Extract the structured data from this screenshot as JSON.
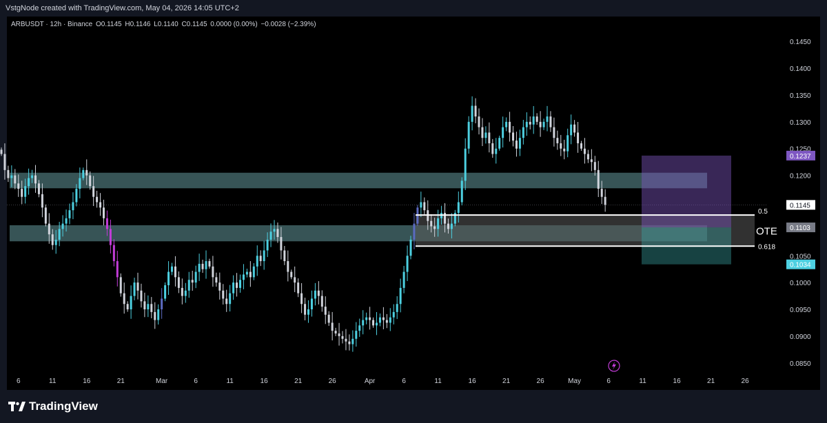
{
  "header": {
    "credit": "VstgNode created with TradingView.com, May 04, 2026 14:05 UTC+2"
  },
  "legend": {
    "symbol": "ARBUSDT · 12h · Binance",
    "open": "O0.1145",
    "high": "H0.1146",
    "low": "L0.1140",
    "close": "C0.1145",
    "change": "0.0000 (0.00%)",
    "change2": "−0.0028 (−2.39%)"
  },
  "brand": {
    "name": "TradingView"
  },
  "colors": {
    "bull": "#4dd0e1",
    "bear": "#d1d4dc",
    "zone": "#5b8c8f",
    "purple": "#7e57c2",
    "purple_candle": "#c23cd8",
    "blue_candle": "#5c6bc0"
  },
  "chart_data": {
    "type": "candlestick",
    "symbol": "ARBUSDT",
    "interval": "12h",
    "exchange": "Binance",
    "ylim": [
      0.0833,
      0.1476
    ],
    "y_ticks": [
      "0.0850",
      "0.0900",
      "0.0950",
      "0.1000",
      "0.1050",
      "0.1100",
      "0.1150",
      "0.1200",
      "0.1250",
      "0.1300",
      "0.1350",
      "0.1400",
      "0.1450"
    ],
    "x_ticks": [
      {
        "label": "6",
        "t": 5
      },
      {
        "label": "11",
        "t": 15
      },
      {
        "label": "16",
        "t": 25
      },
      {
        "label": "21",
        "t": 35
      },
      {
        "label": "Mar",
        "t": 47
      },
      {
        "label": "6",
        "t": 57
      },
      {
        "label": "11",
        "t": 67
      },
      {
        "label": "16",
        "t": 77
      },
      {
        "label": "21",
        "t": 87
      },
      {
        "label": "26",
        "t": 97
      },
      {
        "label": "Apr",
        "t": 108
      },
      {
        "label": "6",
        "t": 118
      },
      {
        "label": "11",
        "t": 128
      },
      {
        "label": "16",
        "t": 138
      },
      {
        "label": "21",
        "t": 148
      },
      {
        "label": "26",
        "t": 158
      },
      {
        "label": "May",
        "t": 168
      },
      {
        "label": "6",
        "t": 178
      },
      {
        "label": "11",
        "t": 188
      },
      {
        "label": "16",
        "t": 198
      },
      {
        "label": "21",
        "t": 208
      },
      {
        "label": "26",
        "t": 218
      }
    ],
    "closes": [
      0.124,
      0.121,
      0.1195,
      0.12,
      0.1185,
      0.1175,
      0.116,
      0.118,
      0.1195,
      0.12,
      0.1185,
      0.1165,
      0.114,
      0.111,
      0.109,
      0.107,
      0.108,
      0.11,
      0.111,
      0.112,
      0.1135,
      0.115,
      0.1175,
      0.1195,
      0.121,
      0.12,
      0.118,
      0.116,
      0.115,
      0.114,
      0.112,
      0.11,
      0.107,
      0.104,
      0.101,
      0.098,
      0.096,
      0.095,
      0.0975,
      0.1,
      0.0985,
      0.0965,
      0.095,
      0.096,
      0.0945,
      0.093,
      0.095,
      0.097,
      0.0995,
      0.102,
      0.103,
      0.101,
      0.099,
      0.0975,
      0.0985,
      0.1005,
      0.1,
      0.102,
      0.1035,
      0.1025,
      0.104,
      0.103,
      0.101,
      0.1,
      0.0985,
      0.097,
      0.096,
      0.098,
      0.1,
      0.099,
      0.1005,
      0.1015,
      0.102,
      0.101,
      0.103,
      0.105,
      0.104,
      0.106,
      0.108,
      0.1095,
      0.11,
      0.1085,
      0.106,
      0.104,
      0.102,
      0.101,
      0.1,
      0.098,
      0.096,
      0.094,
      0.095,
      0.097,
      0.0985,
      0.0975,
      0.0955,
      0.094,
      0.0925,
      0.091,
      0.0905,
      0.09,
      0.0895,
      0.089,
      0.0885,
      0.0895,
      0.091,
      0.092,
      0.093,
      0.0935,
      0.093,
      0.092,
      0.0925,
      0.0935,
      0.093,
      0.0925,
      0.0935,
      0.0945,
      0.096,
      0.099,
      0.102,
      0.105,
      0.108,
      0.111,
      0.114,
      0.115,
      0.1135,
      0.1115,
      0.1105,
      0.11,
      0.112,
      0.113,
      0.111,
      0.11,
      0.111,
      0.113,
      0.115,
      0.119,
      0.125,
      0.13,
      0.133,
      0.131,
      0.129,
      0.127,
      0.128,
      0.126,
      0.124,
      0.125,
      0.127,
      0.129,
      0.13,
      0.128,
      0.1265,
      0.125,
      0.127,
      0.129,
      0.13,
      0.1295,
      0.131,
      0.13,
      0.129,
      0.13,
      0.131,
      0.129,
      0.127,
      0.126,
      0.125,
      0.1245,
      0.1275,
      0.1295,
      0.128,
      0.126,
      0.125,
      0.124,
      0.123,
      0.1225,
      0.121,
      0.1175,
      0.116,
      0.1145
    ],
    "zones": [
      {
        "from": 0.1176,
        "to": 0.1205,
        "label": ""
      },
      {
        "from": 0.1077,
        "to": 0.1107,
        "label": ""
      }
    ],
    "fib_levels": [
      {
        "level": "0.5",
        "price": 0.1126
      },
      {
        "level": "0.618",
        "price": 0.1068
      }
    ],
    "ote_label": "OTE",
    "target_box": {
      "top": 0.1237,
      "mid": 0.1103,
      "bottom": 0.1034
    },
    "price_labels": [
      {
        "text": "0.1237",
        "price": 0.1237,
        "color": "#7e57c2"
      },
      {
        "text": "0.1145",
        "price": 0.1145,
        "color": "#ffffff"
      },
      {
        "text": "0.1103",
        "price": 0.1103,
        "color": "#787b86"
      },
      {
        "text": "0.1034",
        "price": 0.1034,
        "color": "#4dd0e1"
      }
    ],
    "current_price": 0.1145
  }
}
